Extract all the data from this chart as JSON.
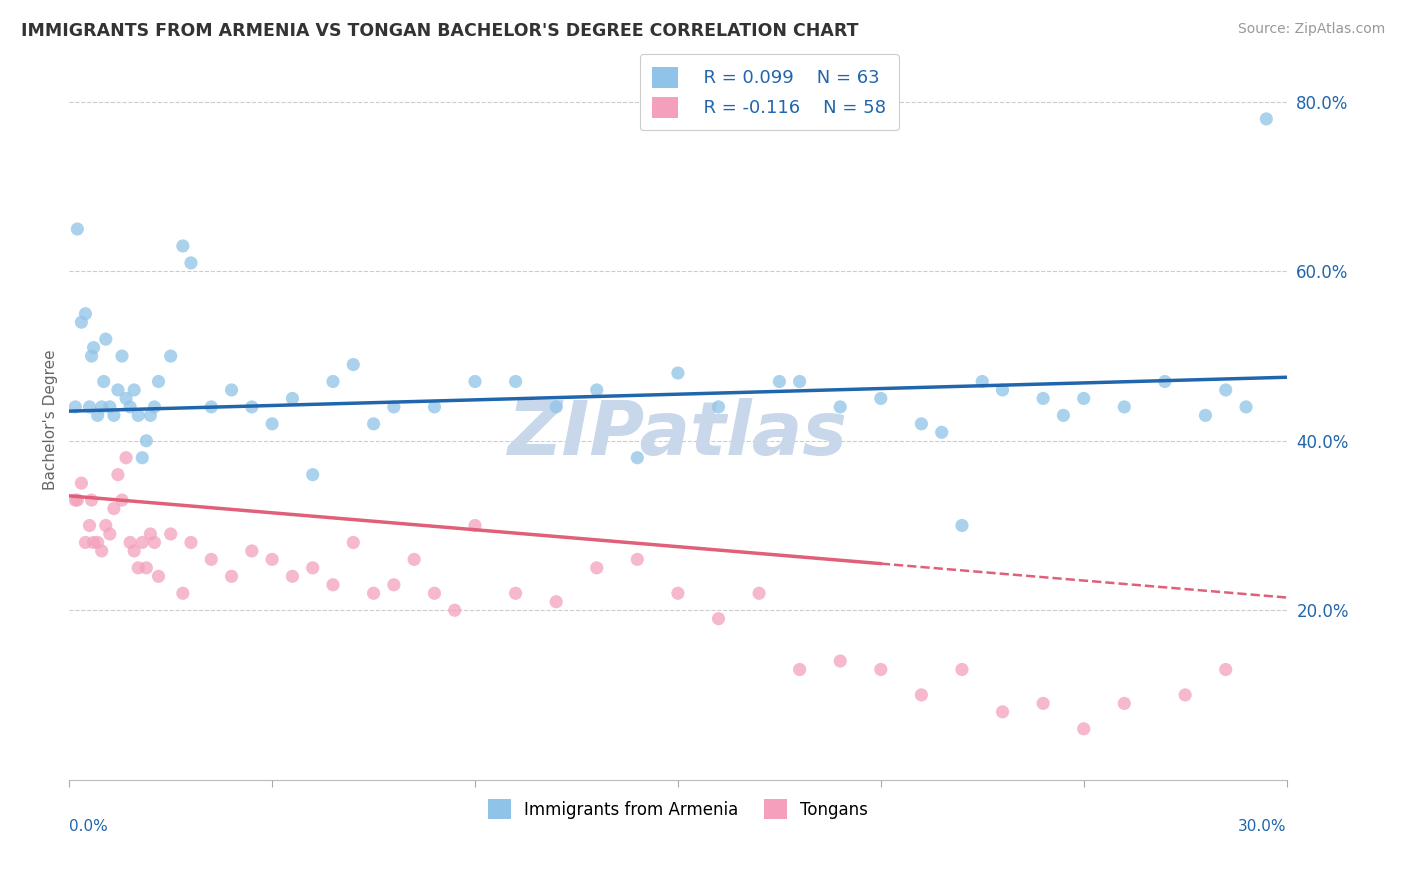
{
  "title": "IMMIGRANTS FROM ARMENIA VS TONGAN BACHELOR'S DEGREE CORRELATION CHART",
  "source": "Source: ZipAtlas.com",
  "ylabel": "Bachelor's Degree",
  "xlim": [
    0.0,
    30.0
  ],
  "ylim": [
    0.0,
    85.0
  ],
  "yticks_right": [
    20.0,
    40.0,
    60.0,
    80.0
  ],
  "background_color": "#ffffff",
  "grid_color": "#cccccc",
  "blue_color": "#8fc3e8",
  "pink_color": "#f4a0bc",
  "blue_line_color": "#2166ac",
  "pink_line_color": "#e0607a",
  "legend_R1": "R = 0.099",
  "legend_N1": "N = 63",
  "legend_R2": "R = -0.116",
  "legend_N2": "N = 58",
  "legend_label1": "Immigrants from Armenia",
  "legend_label2": "Tongans",
  "watermark": "ZIPatlas",
  "watermark_color": "#c8d8ea",
  "blue_x": [
    0.15,
    0.2,
    0.3,
    0.4,
    0.5,
    0.55,
    0.6,
    0.7,
    0.8,
    0.85,
    0.9,
    1.0,
    1.1,
    1.2,
    1.3,
    1.4,
    1.5,
    1.6,
    1.7,
    1.8,
    1.9,
    2.0,
    2.1,
    2.2,
    2.5,
    2.8,
    3.0,
    3.5,
    4.0,
    4.5,
    5.0,
    5.5,
    6.0,
    6.5,
    7.0,
    7.5,
    8.0,
    9.0,
    10.0,
    11.0,
    12.0,
    13.0,
    14.0,
    15.0,
    16.0,
    17.5,
    18.0,
    19.0,
    20.0,
    21.0,
    22.0,
    23.0,
    24.0,
    25.0,
    26.0,
    27.0,
    28.0,
    28.5,
    29.0,
    29.5,
    21.5,
    22.5,
    24.5
  ],
  "blue_y": [
    44.0,
    65.0,
    54.0,
    55.0,
    44.0,
    50.0,
    51.0,
    43.0,
    44.0,
    47.0,
    52.0,
    44.0,
    43.0,
    46.0,
    50.0,
    45.0,
    44.0,
    46.0,
    43.0,
    38.0,
    40.0,
    43.0,
    44.0,
    47.0,
    50.0,
    63.0,
    61.0,
    44.0,
    46.0,
    44.0,
    42.0,
    45.0,
    36.0,
    47.0,
    49.0,
    42.0,
    44.0,
    44.0,
    47.0,
    47.0,
    44.0,
    46.0,
    38.0,
    48.0,
    44.0,
    47.0,
    47.0,
    44.0,
    45.0,
    42.0,
    30.0,
    46.0,
    45.0,
    45.0,
    44.0,
    47.0,
    43.0,
    46.0,
    44.0,
    78.0,
    41.0,
    47.0,
    43.0
  ],
  "pink_x": [
    0.15,
    0.2,
    0.3,
    0.4,
    0.5,
    0.55,
    0.6,
    0.7,
    0.8,
    0.9,
    1.0,
    1.1,
    1.2,
    1.3,
    1.4,
    1.5,
    1.6,
    1.7,
    1.8,
    1.9,
    2.0,
    2.1,
    2.2,
    2.5,
    2.8,
    3.0,
    3.5,
    4.0,
    4.5,
    5.0,
    5.5,
    6.0,
    6.5,
    7.0,
    7.5,
    8.0,
    8.5,
    9.0,
    9.5,
    10.0,
    11.0,
    12.0,
    13.0,
    14.0,
    15.0,
    16.0,
    17.0,
    18.0,
    19.0,
    20.0,
    21.0,
    22.0,
    23.0,
    24.0,
    25.0,
    26.0,
    27.5,
    28.5
  ],
  "pink_y": [
    33.0,
    33.0,
    35.0,
    28.0,
    30.0,
    33.0,
    28.0,
    28.0,
    27.0,
    30.0,
    29.0,
    32.0,
    36.0,
    33.0,
    38.0,
    28.0,
    27.0,
    25.0,
    28.0,
    25.0,
    29.0,
    28.0,
    24.0,
    29.0,
    22.0,
    28.0,
    26.0,
    24.0,
    27.0,
    26.0,
    24.0,
    25.0,
    23.0,
    28.0,
    22.0,
    23.0,
    26.0,
    22.0,
    20.0,
    30.0,
    22.0,
    21.0,
    25.0,
    26.0,
    22.0,
    19.0,
    22.0,
    13.0,
    14.0,
    13.0,
    10.0,
    13.0,
    8.0,
    9.0,
    6.0,
    9.0,
    10.0,
    13.0
  ],
  "blue_reg_x0": 0.0,
  "blue_reg_y0": 43.5,
  "blue_reg_x1": 30.0,
  "blue_reg_y1": 47.5,
  "pink_reg_x0": 0.0,
  "pink_reg_y0": 33.5,
  "pink_reg_x1": 20.0,
  "pink_reg_y1": 25.5,
  "pink_dash_x0": 20.0,
  "pink_dash_y0": 25.5,
  "pink_dash_x1": 30.0,
  "pink_dash_y1": 21.5
}
